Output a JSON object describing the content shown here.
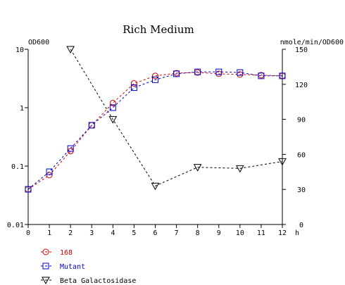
{
  "chart_data": {
    "type": "line",
    "title": "Rich Medium",
    "x_unit": "h",
    "x_ticks": [
      "0",
      "1",
      "2",
      "3",
      "4",
      "5",
      "6",
      "7",
      "8",
      "9",
      "10",
      "11",
      "12"
    ],
    "xlim": [
      0,
      12
    ],
    "y_left": {
      "label": "OD600",
      "scale": "log",
      "ylim": [
        0.01,
        10
      ],
      "ticks": [
        {
          "value": 10,
          "label": "10"
        },
        {
          "value": 1,
          "label": "1"
        },
        {
          "value": 0.1,
          "label": "0.1"
        },
        {
          "value": 0.01,
          "label": "0.01"
        }
      ]
    },
    "y_right": {
      "label": "nmole/min/OD600",
      "scale": "linear",
      "ylim": [
        0,
        150
      ],
      "ticks": [
        {
          "value": 150,
          "label": "150"
        },
        {
          "value": 120,
          "label": "120"
        },
        {
          "value": 90,
          "label": "90"
        },
        {
          "value": 60,
          "label": "60"
        },
        {
          "value": 30,
          "label": "30"
        },
        {
          "value": 0,
          "label": "0"
        }
      ]
    },
    "series": [
      {
        "name": "168",
        "axis": "left",
        "marker": "circle",
        "color": "#cc0000",
        "points": [
          [
            0,
            0.04
          ],
          [
            1,
            0.07
          ],
          [
            2,
            0.18
          ],
          [
            3,
            0.5
          ],
          [
            4,
            1.2
          ],
          [
            5,
            2.6
          ],
          [
            6,
            3.5
          ],
          [
            7,
            3.9
          ],
          [
            8,
            4.0
          ],
          [
            9,
            3.8
          ],
          [
            10,
            3.7
          ],
          [
            11,
            3.6
          ],
          [
            12,
            3.5
          ]
        ]
      },
      {
        "name": "Mutant",
        "axis": "left",
        "marker": "square",
        "color": "#0000cc",
        "points": [
          [
            0,
            0.04
          ],
          [
            1,
            0.08
          ],
          [
            2,
            0.2
          ],
          [
            3,
            0.5
          ],
          [
            4,
            1.0
          ],
          [
            5,
            2.2
          ],
          [
            6,
            3.0
          ],
          [
            7,
            3.8
          ],
          [
            8,
            4.1
          ],
          [
            9,
            4.1
          ],
          [
            10,
            4.0
          ],
          [
            11,
            3.5
          ],
          [
            12,
            3.5
          ]
        ]
      },
      {
        "name": "Beta Galactosidase",
        "axis": "right",
        "marker": "triangle-down",
        "color": "#000000",
        "points": [
          [
            2,
            150
          ],
          [
            4,
            90
          ],
          [
            6,
            33
          ],
          [
            8,
            49
          ],
          [
            10,
            48
          ],
          [
            12,
            54
          ]
        ]
      }
    ],
    "legend_position": "bottom-left",
    "grid": false
  }
}
